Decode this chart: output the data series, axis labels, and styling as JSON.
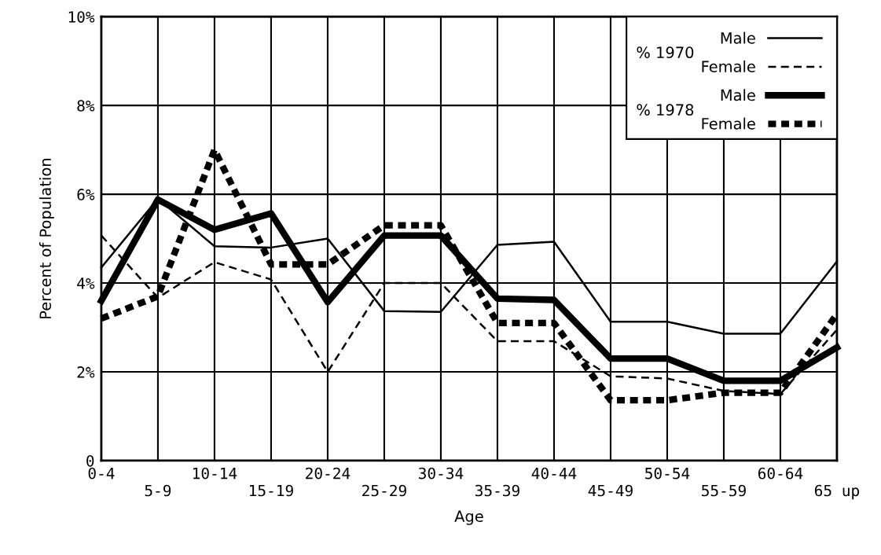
{
  "chart_data": {
    "type": "line",
    "xlabel": "Age",
    "ylabel": "Percent of Population",
    "categories": [
      "0-4",
      "5-9",
      "10-14",
      "15-19",
      "20-24",
      "25-29",
      "30-34",
      "35-39",
      "40-44",
      "45-49",
      "50-54",
      "55-59",
      "60-64",
      "65 up"
    ],
    "series": [
      {
        "name": "Male",
        "color": "#000000",
        "line_style": "solid",
        "values": [
          4.35,
          5.9,
          4.83,
          4.8,
          5.0,
          3.37,
          3.35,
          4.86,
          4.93,
          3.13,
          3.13,
          2.86,
          2.86,
          4.49
        ]
      },
      {
        "name": "Female",
        "color": "#000000",
        "line_style": "dashed",
        "values": [
          5.07,
          3.67,
          4.47,
          4.08,
          2.0,
          4.0,
          4.0,
          2.69,
          2.69,
          1.9,
          1.85,
          1.57,
          1.5,
          2.95
        ]
      },
      {
        "name": "Male",
        "color": "#000000",
        "line_style": "solid",
        "values": [
          3.6,
          5.88,
          5.2,
          5.57,
          3.57,
          5.07,
          5.07,
          3.65,
          3.62,
          2.3,
          2.3,
          1.8,
          1.8,
          2.55
        ]
      },
      {
        "name": "Female",
        "color": "#000000",
        "line_style": "dotted",
        "values": [
          3.2,
          3.7,
          7.0,
          4.42,
          4.42,
          5.3,
          5.3,
          3.1,
          3.1,
          1.36,
          1.36,
          1.53,
          1.53,
          3.3
        ]
      }
    ],
    "annotations": [
      "% 1970",
      "% 1978"
    ],
    "ylim": [
      0,
      10
    ],
    "yticks": [
      {
        "value": 0,
        "label": "0"
      },
      {
        "value": 2,
        "label": "2%"
      },
      {
        "value": 4,
        "label": "4%"
      },
      {
        "value": 6,
        "label": "6%"
      },
      {
        "value": 8,
        "label": "8%"
      },
      {
        "value": 10,
        "label": "10%"
      }
    ],
    "grid": true,
    "legend": "top right",
    "marker": "none"
  }
}
